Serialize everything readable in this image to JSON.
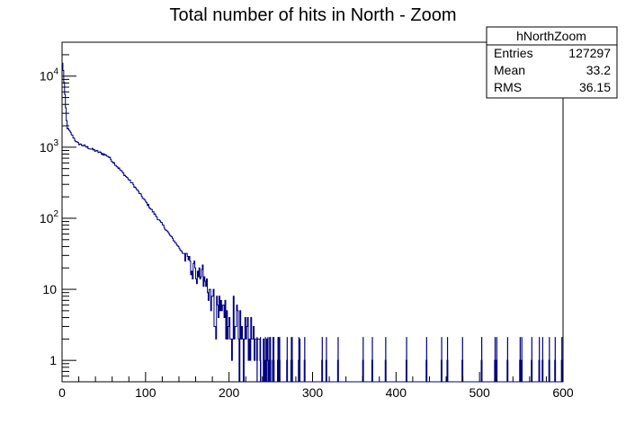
{
  "chart_data": {
    "type": "histogram",
    "title": "Total number of hits in North - Zoom",
    "xlabel": "",
    "ylabel": "",
    "xlim": [
      0,
      600
    ],
    "ylim": [
      0.5,
      30000
    ],
    "y_scale": "log",
    "x_ticks": [
      "0",
      "100",
      "200",
      "300",
      "400",
      "500",
      "600"
    ],
    "y_ticks": [
      {
        "value": 1,
        "label": "1"
      },
      {
        "value": 10,
        "label": "10"
      },
      {
        "value": 100,
        "label": "10^2"
      },
      {
        "value": 1000,
        "label": "10^3"
      },
      {
        "value": 10000,
        "label": "10^4"
      }
    ],
    "bin_width": 1,
    "line_color": "#000080",
    "stats": {
      "name": "hNorthZoom",
      "rows": [
        {
          "label": "Entries",
          "value": "127297"
        },
        {
          "label": "Mean",
          "value": "33.2"
        },
        {
          "label": "RMS",
          "value": "36.15"
        }
      ]
    },
    "grid": false
  }
}
